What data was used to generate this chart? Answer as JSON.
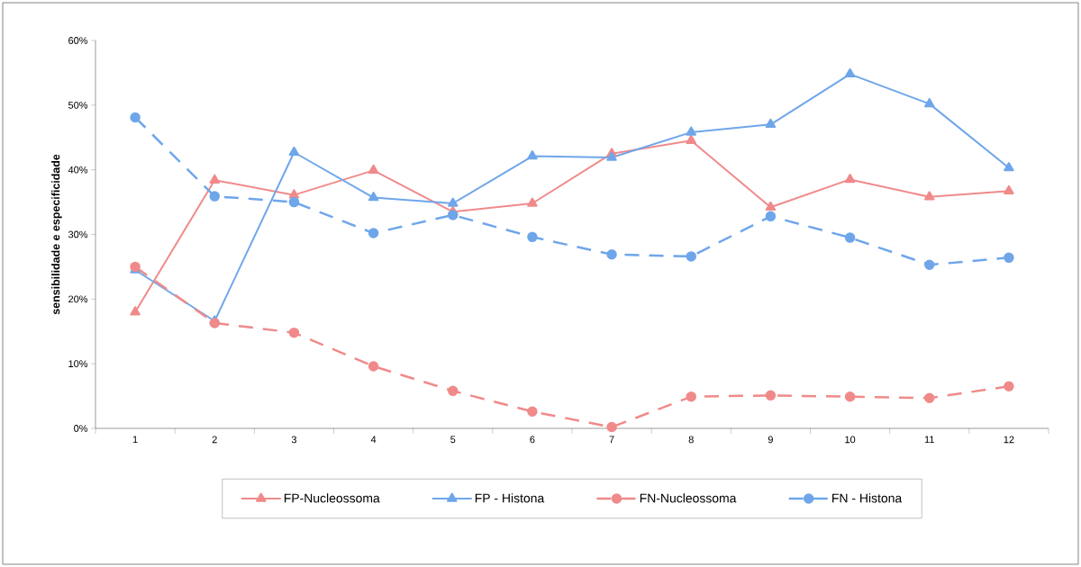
{
  "chart_data": {
    "type": "line",
    "ylabel": "sensibilidade e especificidade",
    "categories": [
      "1",
      "2",
      "3",
      "4",
      "5",
      "6",
      "7",
      "8",
      "9",
      "10",
      "11",
      "12"
    ],
    "ylim": [
      0,
      60
    ],
    "yticks": [
      {
        "value": 0,
        "label": "0%"
      },
      {
        "value": 10,
        "label": "10%"
      },
      {
        "value": 20,
        "label": "20%"
      },
      {
        "value": 30,
        "label": "30%"
      },
      {
        "value": 40,
        "label": "40%"
      },
      {
        "value": 50,
        "label": "50%"
      },
      {
        "value": 60,
        "label": "60%"
      }
    ],
    "series": [
      {
        "name": "FP-Nucleossoma",
        "color": "#f08a8a",
        "marker": "triangle",
        "line_style": "solid",
        "values": [
          18,
          38.4,
          36.1,
          39.9,
          33.5,
          34.8,
          42.5,
          44.5,
          34.2,
          38.5,
          35.8,
          36.7
        ]
      },
      {
        "name": "FP - Histona",
        "color": "#6fa6ea",
        "marker": "triangle",
        "line_style": "solid",
        "values": [
          24.5,
          16.6,
          42.7,
          35.7,
          34.8,
          42.1,
          41.9,
          45.8,
          47,
          54.8,
          50.2,
          40.3
        ]
      },
      {
        "name": "FN-Nucleossoma",
        "color": "#f08a8a",
        "marker": "circle",
        "line_style": "dashed",
        "values": [
          25,
          16.3,
          14.8,
          9.6,
          5.8,
          2.6,
          0.2,
          4.9,
          5.1,
          4.9,
          4.7,
          6.5
        ]
      },
      {
        "name": "FN - Histona",
        "color": "#6fa6ea",
        "marker": "circle",
        "line_style": "dashed",
        "values": [
          48.1,
          35.9,
          35,
          30.2,
          33,
          29.6,
          26.9,
          26.6,
          32.8,
          29.5,
          25.3,
          26.4
        ]
      }
    ],
    "legend": "bottom",
    "grid": false
  }
}
